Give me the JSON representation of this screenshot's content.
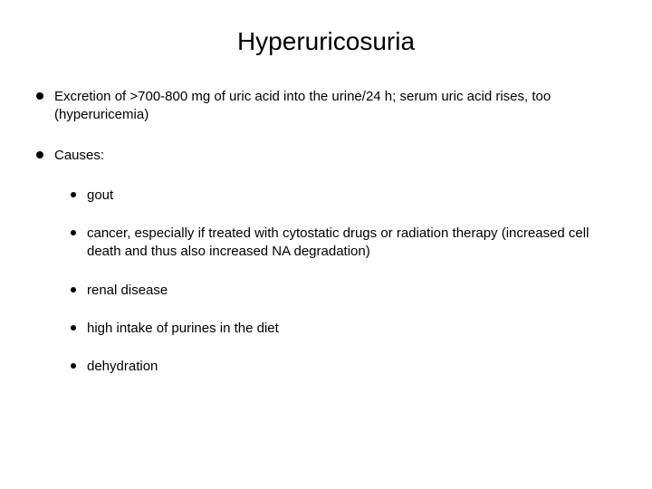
{
  "title": "Hyperuricosuria",
  "title_fontsize": 28,
  "body_fontsize": 15,
  "colors": {
    "background": "#ffffff",
    "text": "#000000",
    "bullet": "#000000"
  },
  "bullets": [
    {
      "text": "Excretion of >700-800 mg of uric acid into the urine/24 h; serum uric acid rises, too (hyperuricemia)"
    },
    {
      "text": "Causes:",
      "children": [
        {
          "text": "gout"
        },
        {
          "text": "cancer, especially if treated with cytostatic drugs or radiation therapy (increased cell death and thus also increased NA degradation)"
        },
        {
          "text": "renal disease"
        },
        {
          "text": "high intake of purines in the diet"
        },
        {
          "text": "dehydration"
        }
      ]
    }
  ]
}
